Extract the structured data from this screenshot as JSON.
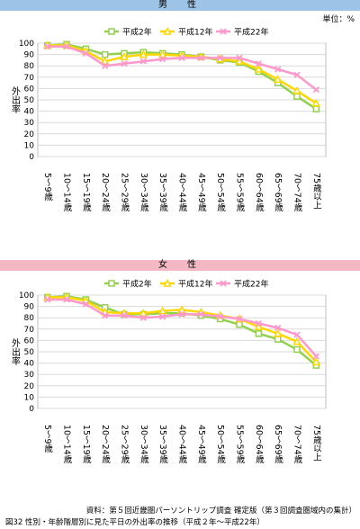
{
  "unit_label": "単位：%",
  "source": "資料：第５回近畿圏パーソントリップ調査 確定版（第３回調査圏域内の集計）",
  "caption": "図32 性別・年齢階層別に見た平日の外出率の推移（平成２年〜平成22年）",
  "chart_data": [
    {
      "type": "line",
      "title": "男　性",
      "ylabel": "外出率",
      "ylim": [
        0,
        100
      ],
      "yticks": [
        0,
        10,
        20,
        30,
        40,
        50,
        60,
        70,
        80,
        90,
        100
      ],
      "grid": true,
      "legend": "top-center",
      "categories": [
        "5〜9歳",
        "10〜14歳",
        "15〜19歳",
        "20〜24歳",
        "25〜29歳",
        "30〜34歳",
        "35〜39歳",
        "40〜44歳",
        "45〜49歳",
        "50〜54歳",
        "55〜59歳",
        "60〜64歳",
        "65〜69歳",
        "70〜74歳",
        "75歳以上"
      ],
      "series": [
        {
          "name": "平成2年",
          "color": "#92d050",
          "marker": "square",
          "values": [
            98,
            99,
            95,
            90,
            91,
            92,
            91,
            90,
            88,
            85,
            83,
            75,
            65,
            53,
            42
          ]
        },
        {
          "name": "平成12年",
          "color": "#ffd700",
          "marker": "triangle",
          "values": [
            98,
            98,
            93,
            84,
            88,
            90,
            90,
            89,
            88,
            86,
            84,
            77,
            68,
            58,
            47
          ]
        },
        {
          "name": "平成22年",
          "color": "#ff99cc",
          "marker": "x",
          "values": [
            97,
            97,
            91,
            80,
            82,
            84,
            86,
            87,
            87,
            87,
            87,
            82,
            77,
            72,
            59
          ]
        }
      ]
    },
    {
      "type": "line",
      "title": "女　性",
      "ylabel": "外出率",
      "ylim": [
        0,
        100
      ],
      "yticks": [
        0,
        10,
        20,
        30,
        40,
        50,
        60,
        70,
        80,
        90,
        100
      ],
      "grid": true,
      "legend": "top-center",
      "categories": [
        "5〜9歳",
        "10〜14歳",
        "15〜19歳",
        "20〜24歳",
        "25〜29歳",
        "30〜34歳",
        "35〜39歳",
        "40〜44歳",
        "45〜49歳",
        "50〜54歳",
        "55〜59歳",
        "60〜64歳",
        "65〜69歳",
        "70〜74歳",
        "75歳以上"
      ],
      "series": [
        {
          "name": "平成2年",
          "color": "#92d050",
          "marker": "square",
          "values": [
            98,
            99,
            96,
            89,
            83,
            83,
            84,
            84,
            82,
            79,
            74,
            66,
            61,
            52,
            38
          ]
        },
        {
          "name": "平成12年",
          "color": "#ffd700",
          "marker": "triangle",
          "values": [
            98,
            98,
            95,
            85,
            84,
            84,
            86,
            87,
            85,
            82,
            79,
            72,
            66,
            59,
            41
          ]
        },
        {
          "name": "平成22年",
          "color": "#ff99cc",
          "marker": "x",
          "values": [
            96,
            96,
            92,
            82,
            82,
            80,
            81,
            83,
            83,
            81,
            79,
            75,
            71,
            65,
            46
          ]
        }
      ]
    }
  ]
}
